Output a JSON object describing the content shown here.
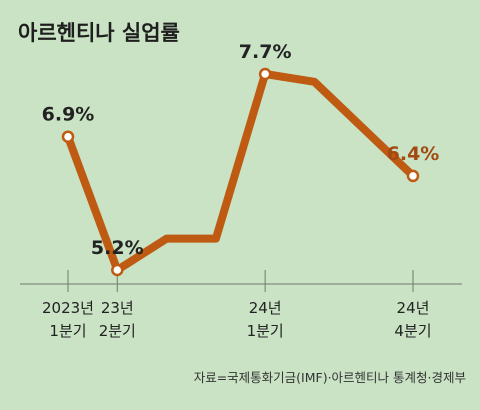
{
  "chart_data": {
    "type": "line",
    "title": "아르헨티나 실업률",
    "source": "자료=국제통화기금(IMF)·아르헨티나 통계청·경제부",
    "series": [
      {
        "values": [
          6.9,
          5.2,
          5.6,
          5.6,
          7.7,
          7.6,
          7.0,
          6.4
        ],
        "color": "#bf5a12"
      }
    ],
    "points": [
      {
        "index": 0,
        "label": "6.9%",
        "highlight_color": "#222222"
      },
      {
        "index": 1,
        "label": "5.2%",
        "highlight_color": "#222222"
      },
      {
        "index": 4,
        "label": "7.7%",
        "highlight_color": "#222222"
      },
      {
        "index": 7,
        "label": "6.4%",
        "highlight_color": "#a24a12"
      }
    ],
    "ticks": [
      {
        "index": 0,
        "lines": [
          "2023년",
          "1분기"
        ]
      },
      {
        "index": 1,
        "lines": [
          "23년",
          "2분기"
        ]
      },
      {
        "index": 4,
        "lines": [
          "24년",
          "1분기"
        ]
      },
      {
        "index": 7,
        "lines": [
          "24년",
          "4분기"
        ]
      }
    ],
    "ylim": [
      5.2,
      7.7
    ],
    "grid": false
  }
}
